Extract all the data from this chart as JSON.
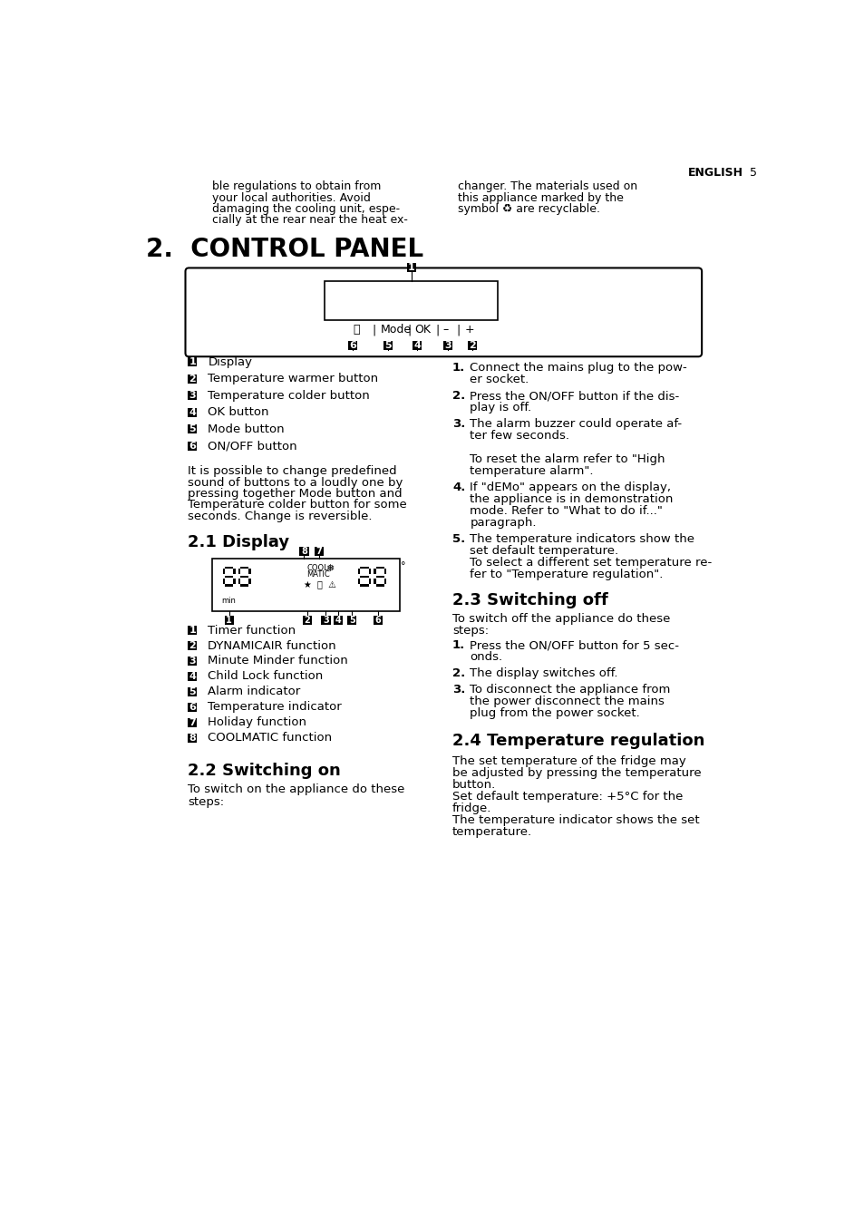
{
  "bg_color": "#ffffff",
  "page_header": "ENGLISH",
  "page_num": "5",
  "top_left_text": [
    "ble regulations to obtain from",
    "your local authorities. Avoid",
    "damaging the cooling unit, espe-",
    "cially at the rear near the heat ex-"
  ],
  "top_right_text": [
    "changer. The materials used on",
    "this appliance marked by the",
    "symbol ♻ are recyclable."
  ],
  "section_title": "2.  CONTROL PANEL",
  "numbered_labels_left": [
    [
      "1",
      "Display"
    ],
    [
      "2",
      "Temperature warmer button"
    ],
    [
      "3",
      "Temperature colder button"
    ],
    [
      "4",
      "OK button"
    ],
    [
      "5",
      "Mode button"
    ],
    [
      "6",
      "ON/OFF button"
    ]
  ],
  "paragraph_left": "It is possible to change predefined\nsound of buttons to a loudly one by\npressing together Mode button and\nTemperature colder button for some\nseconds. Change is reversible.",
  "subsection_21": "2.1 Display",
  "display_labels": [
    [
      "1",
      "Timer function"
    ],
    [
      "2",
      "DYNAMICAIR function"
    ],
    [
      "3",
      "Minute Minder function"
    ],
    [
      "4",
      "Child Lock function"
    ],
    [
      "5",
      "Alarm indicator"
    ],
    [
      "6",
      "Temperature indicator"
    ],
    [
      "7",
      "Holiday function"
    ],
    [
      "8",
      "COOLMATIC function"
    ]
  ],
  "subsection_22": "2.2 Switching on",
  "switching_on_text": "To switch on the appliance do these\nsteps:",
  "switching_on_steps_right": [
    [
      "1.",
      "Connect the mains plug to the pow-\ner socket."
    ],
    [
      "2.",
      "Press the ON/OFF button if the dis-\nplay is off."
    ],
    [
      "3.",
      "The alarm buzzer could operate af-\nter few seconds.\n\nTo reset the alarm refer to \"High\ntemperature alarm\"."
    ],
    [
      "4.",
      "If \"dEMo\" appears on the display,\nthe appliance is in demonstration\nmode. Refer to \"What to do if...\"\nparagraph."
    ],
    [
      "5.",
      "The temperature indicators show the\nset default temperature.\nTo select a different set temperature re-\nfer to \"Temperature regulation\"."
    ]
  ],
  "subsection_23": "2.3 Switching off",
  "switching_off_intro": "To switch off the appliance do these\nsteps:",
  "switching_off_steps": [
    [
      "1.",
      "Press the ON/OFF button for 5 sec-\nonds."
    ],
    [
      "2.",
      "The display switches off."
    ],
    [
      "3.",
      "To disconnect the appliance from\nthe power disconnect the mains\nplug from the power socket."
    ]
  ],
  "subsection_24": "2.4 Temperature regulation",
  "temp_reg_text": "The set temperature of the fridge may\nbe adjusted by pressing the temperature\nbutton.\nSet default temperature: +5°C for the\nfridge.\nThe temperature indicator shows the set\ntemperature."
}
